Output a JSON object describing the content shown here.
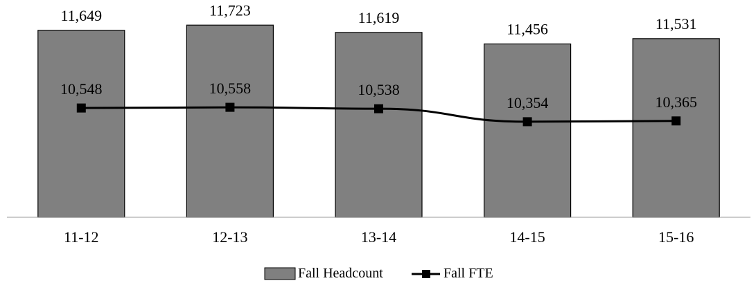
{
  "chart_data": {
    "type": "bar",
    "categories": [
      "11-12",
      "12-13",
      "13-14",
      "14-15",
      "15-16"
    ],
    "series": [
      {
        "name": "Fall Headcount",
        "kind": "bar",
        "values": [
          11649,
          11723,
          11619,
          11456,
          11531
        ],
        "labels": [
          "11,649",
          "11,723",
          "11,619",
          "11,456",
          "11,531"
        ],
        "color": "#808080"
      },
      {
        "name": "Fall FTE",
        "kind": "line",
        "values": [
          10548,
          10558,
          10538,
          10354,
          10365
        ],
        "labels": [
          "10,548",
          "10,558",
          "10,538",
          "10,354",
          "10,365"
        ],
        "color": "#000000"
      }
    ],
    "title": "",
    "xlabel": "",
    "ylabel": "",
    "ylim": [
      9000,
      12000
    ],
    "grid": false,
    "legend": "bottom-center"
  }
}
